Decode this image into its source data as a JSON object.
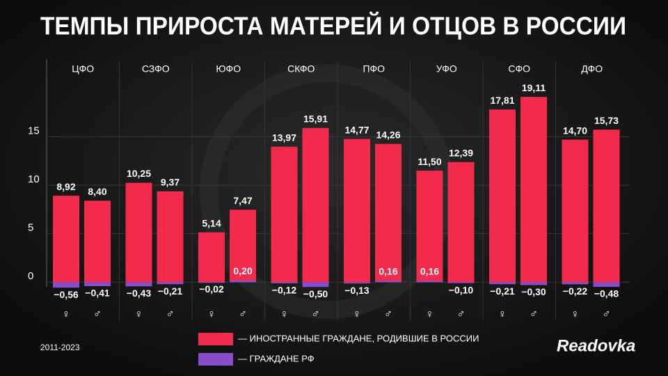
{
  "chart_data": {
    "type": "bar",
    "title": "ТЕМПЫ ПРИРОСТА МАТЕРЕЙ И ОТЦОВ В РОССИИ",
    "groups": [
      "ЦФО",
      "СЗФО",
      "ЮФО",
      "СКФО",
      "ПФО",
      "УФО",
      "СФО",
      "ДФО"
    ],
    "categories": [
      "♀",
      "♂",
      "♀",
      "♂",
      "♀",
      "♂",
      "♀",
      "♂",
      "♀",
      "♂",
      "♀",
      "♂",
      "♀",
      "♂",
      "♀",
      "♂"
    ],
    "series": [
      {
        "name": "— ИНОСТРАННЫЕ ГРАЖДАНЕ, РОДИВШИЕ В РОССИИ",
        "color": "#f42a4c",
        "values": [
          8.92,
          8.4,
          10.25,
          9.37,
          5.14,
          7.47,
          13.97,
          15.91,
          14.77,
          14.26,
          11.5,
          12.39,
          17.81,
          19.11,
          14.7,
          15.73
        ],
        "value_labels": [
          "8,92",
          "8,40",
          "10,25",
          "9,37",
          "5,14",
          "7,47",
          "13,97",
          "15,91",
          "14,77",
          "14,26",
          "11,50",
          "12,39",
          "17,81",
          "19,11",
          "14,70",
          "15,73"
        ]
      },
      {
        "name": "— ГРАЖДАНЕ РФ",
        "color": "#8a4dc9",
        "values": [
          -0.56,
          -0.41,
          -0.43,
          -0.21,
          -0.02,
          0.2,
          -0.12,
          -0.5,
          -0.13,
          0.16,
          0.16,
          -0.1,
          -0.21,
          -0.3,
          -0.22,
          -0.48
        ],
        "value_labels": [
          "−0,56",
          "−0,41",
          "−0,43",
          "−0,21",
          "−0,02",
          "0,20",
          "−0,12",
          "−0,50",
          "−0,13",
          "0,16",
          "0,16",
          "−0,10",
          "−0,21",
          "−0,30",
          "−0,22",
          "−0,48"
        ]
      }
    ],
    "ylim": [
      -3.5,
      23
    ],
    "yticks": [
      0,
      5,
      10,
      15
    ],
    "grid": true,
    "footnote": "2011-2023",
    "brand": "Readovka"
  }
}
